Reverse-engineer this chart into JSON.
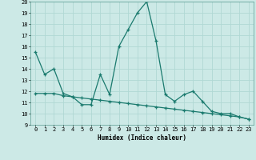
{
  "xlabel": "Humidex (Indice chaleur)",
  "xlim": [
    -0.5,
    23.5
  ],
  "ylim": [
    9,
    20
  ],
  "yticks": [
    9,
    10,
    11,
    12,
    13,
    14,
    15,
    16,
    17,
    18,
    19,
    20
  ],
  "xticks": [
    0,
    1,
    2,
    3,
    4,
    5,
    6,
    7,
    8,
    9,
    10,
    11,
    12,
    13,
    14,
    15,
    16,
    17,
    18,
    19,
    20,
    21,
    22,
    23
  ],
  "background_color": "#cce9e6",
  "grid_color": "#b0d8d4",
  "line_color": "#1a7a6e",
  "line1_x": [
    0,
    1,
    2,
    3,
    4,
    5,
    6,
    7,
    8,
    9,
    10,
    11,
    12,
    13,
    14,
    15,
    16,
    17,
    18,
    19,
    20,
    21,
    22,
    23
  ],
  "line1_y": [
    15.5,
    13.5,
    14.0,
    11.8,
    11.5,
    10.8,
    10.8,
    13.5,
    11.7,
    16.0,
    17.5,
    19.0,
    20.0,
    16.5,
    11.7,
    11.1,
    11.7,
    12.0,
    11.1,
    10.2,
    10.0,
    10.0,
    9.7,
    9.5
  ],
  "line2_x": [
    0,
    1,
    2,
    3,
    4,
    5,
    6,
    7,
    8,
    9,
    10,
    11,
    12,
    13,
    14,
    15,
    16,
    17,
    18,
    19,
    20,
    21,
    22,
    23
  ],
  "line2_y": [
    11.8,
    11.8,
    11.8,
    11.6,
    11.5,
    11.4,
    11.3,
    11.2,
    11.1,
    11.0,
    10.9,
    10.8,
    10.7,
    10.6,
    10.5,
    10.4,
    10.3,
    10.2,
    10.1,
    10.0,
    9.9,
    9.8,
    9.7,
    9.5
  ]
}
